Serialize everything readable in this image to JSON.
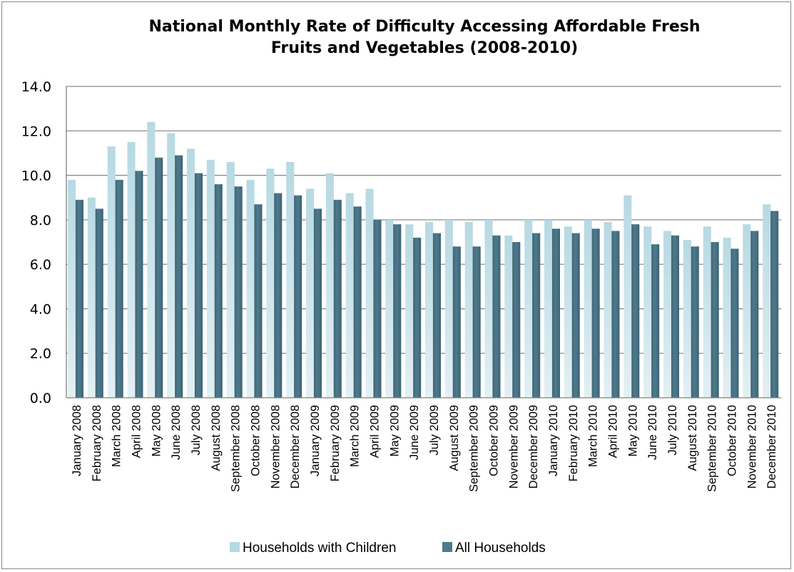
{
  "chart_data": {
    "type": "bar",
    "title_lines": [
      "National Monthly Rate of Difficulty Accessing Affordable Fresh",
      "Fruits and Vegetables (2008-2010)"
    ],
    "xlabel": "",
    "ylabel": "",
    "ylim": [
      0,
      14
    ],
    "yticks": [
      "0.0",
      "2.0",
      "4.0",
      "6.0",
      "8.0",
      "10.0",
      "12.0",
      "14.0"
    ],
    "grid": true,
    "legend_position": "bottom",
    "categories": [
      "January 2008",
      "February 2008",
      "March 2008",
      "April 2008",
      "May 2008",
      "June 2008",
      "July 2008",
      "August 2008",
      "September 2008",
      "October 2008",
      "November 2008",
      "December 2008",
      "January 2009",
      "February 2009",
      "March 2009",
      "April 2009",
      "May 2009",
      "June 2009",
      "July 2009",
      "August 2009",
      "September 2009",
      "October 2009",
      "November 2009",
      "December 2009",
      "January 2010",
      "February 2010",
      "March 2010",
      "April 2010",
      "May 2010",
      "June 2010",
      "July 2010",
      "August 2010",
      "September 2010",
      "October 2010",
      "November 2010",
      "December 2010"
    ],
    "series": [
      {
        "name": "Households with Children",
        "color": "#b7d9e3",
        "values": [
          9.8,
          9.0,
          11.3,
          11.5,
          12.4,
          11.9,
          11.2,
          10.7,
          10.6,
          9.8,
          10.3,
          10.6,
          9.4,
          10.1,
          9.2,
          9.4,
          8.0,
          7.8,
          7.9,
          8.0,
          7.9,
          8.0,
          7.3,
          8.0,
          8.0,
          7.7,
          8.0,
          7.9,
          9.1,
          7.7,
          7.5,
          7.1,
          7.7,
          7.2,
          7.8,
          8.7
        ]
      },
      {
        "name": "All Households",
        "color": "#4f7a8c",
        "values": [
          8.9,
          8.5,
          9.8,
          10.2,
          10.8,
          10.9,
          10.1,
          9.6,
          9.5,
          8.7,
          9.2,
          9.1,
          8.5,
          8.9,
          8.6,
          8.0,
          7.8,
          7.2,
          7.4,
          6.8,
          6.8,
          7.3,
          7.0,
          7.4,
          7.6,
          7.4,
          7.6,
          7.5,
          7.8,
          6.9,
          7.3,
          6.8,
          7.0,
          6.7,
          7.5,
          8.4
        ]
      }
    ]
  }
}
